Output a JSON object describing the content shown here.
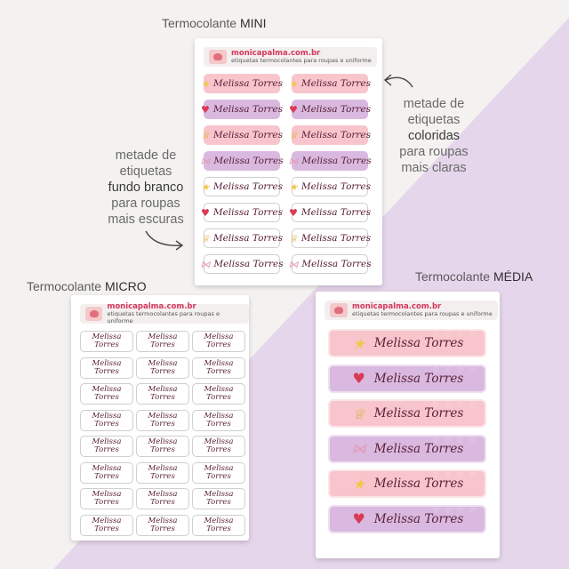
{
  "captions": {
    "mini": {
      "prefix": "Termocolante ",
      "bold": "MINI"
    },
    "micro": {
      "prefix": "Termocolante ",
      "bold": "MICRO"
    },
    "media": {
      "prefix": "Termocolante ",
      "bold": "MÉDIA"
    }
  },
  "note_left": [
    "metade de",
    "etiquetas",
    "fundo branco",
    "para roupas",
    "mais escuras"
  ],
  "note_right": [
    "metade de",
    "etiquetas",
    "coloridas",
    "para roupas",
    "mais claras"
  ],
  "brand": {
    "name": "monicapalma.com.br",
    "tagline": "etiquetas termocolantes para roupas e uniforme"
  },
  "label_name": "Melissa Torres",
  "micro_lines": [
    "Melissa",
    "Torres"
  ],
  "icons": {
    "star": "★",
    "heart": "♥",
    "crown": "♕",
    "bow": "⋈"
  },
  "colors": {
    "pink": "#f7c5cb",
    "lilac": "#dab9e0",
    "background": "#f4f2f0",
    "diagonal": "#e6d6ec"
  }
}
